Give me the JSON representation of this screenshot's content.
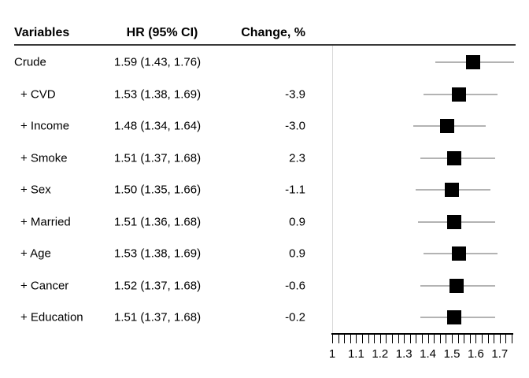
{
  "figure": {
    "headers": {
      "variables": "Variables",
      "hr_ci": "HR (95% CI)",
      "change": "Change, %"
    }
  },
  "chart_data": {
    "type": "forest",
    "title": "",
    "columns": [
      "Variables",
      "HR (95% CI)",
      "Change, %"
    ],
    "rows": [
      {
        "variable": "Crude",
        "hr": 1.59,
        "ci_low": 1.43,
        "ci_high": 1.76,
        "hr_text": "1.59 (1.43, 1.76)",
        "change_text": ""
      },
      {
        "variable": "+ CVD",
        "hr": 1.53,
        "ci_low": 1.38,
        "ci_high": 1.69,
        "hr_text": "1.53 (1.38, 1.69)",
        "change_text": "-3.9"
      },
      {
        "variable": "+ Income",
        "hr": 1.48,
        "ci_low": 1.34,
        "ci_high": 1.64,
        "hr_text": "1.48 (1.34, 1.64)",
        "change_text": "-3.0"
      },
      {
        "variable": "+ Smoke",
        "hr": 1.51,
        "ci_low": 1.37,
        "ci_high": 1.68,
        "hr_text": "1.51 (1.37, 1.68)",
        "change_text": "2.3"
      },
      {
        "variable": "+ Sex",
        "hr": 1.5,
        "ci_low": 1.35,
        "ci_high": 1.66,
        "hr_text": "1.50 (1.35, 1.66)",
        "change_text": "-1.1"
      },
      {
        "variable": "+ Married",
        "hr": 1.51,
        "ci_low": 1.36,
        "ci_high": 1.68,
        "hr_text": "1.51 (1.36, 1.68)",
        "change_text": "0.9"
      },
      {
        "variable": "+ Age",
        "hr": 1.53,
        "ci_low": 1.38,
        "ci_high": 1.69,
        "hr_text": "1.53 (1.38, 1.69)",
        "change_text": "0.9"
      },
      {
        "variable": "+ Cancer",
        "hr": 1.52,
        "ci_low": 1.37,
        "ci_high": 1.68,
        "hr_text": "1.52 (1.37, 1.68)",
        "change_text": "-0.6"
      },
      {
        "variable": "+ Education",
        "hr": 1.51,
        "ci_low": 1.37,
        "ci_high": 1.68,
        "hr_text": "1.51 (1.37, 1.68)",
        "change_text": "-0.2"
      }
    ],
    "x_axis": {
      "min": 1.0,
      "max": 1.75,
      "minor_tick_step": 0.025,
      "tick_values": [
        1,
        1.1,
        1.2,
        1.3,
        1.4,
        1.5,
        1.6,
        1.7
      ],
      "tick_labels": [
        "1",
        "1.1",
        "1.2",
        "1.3",
        "1.4",
        "1.5",
        "1.6",
        "1.7"
      ]
    },
    "reference_line_x": 1.0,
    "legend": null,
    "grid": false,
    "style": {
      "marker_shape": "square",
      "marker_color": "#000000",
      "marker_size_px": 18,
      "ci_line_color": "#b3b3b3",
      "reference_line_color": "#d9d9d9",
      "axis_color": "#000000",
      "header_rule_color": "#3a3a3a",
      "text_color": "#000000"
    }
  }
}
